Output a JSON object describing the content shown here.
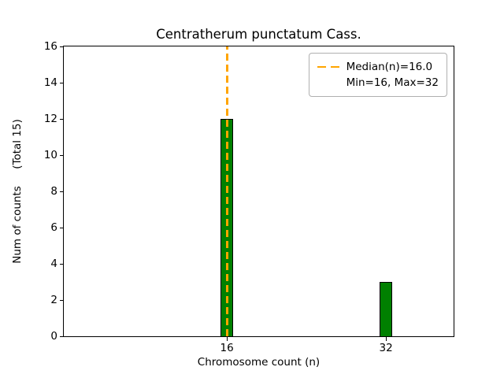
{
  "chart_data": {
    "type": "bar",
    "title": "Centratherum punctatum Cass.",
    "xlabel": "Chromosome count (n)",
    "ylabel": "Num of counts     (Total 15)",
    "xlim": [
      -0.4,
      38.8
    ],
    "ylim": [
      0,
      16
    ],
    "x_ticks": [
      16,
      32
    ],
    "y_ticks": [
      0,
      2,
      4,
      6,
      8,
      10,
      12,
      14,
      16
    ],
    "bars": [
      {
        "x": 16,
        "count": 12
      },
      {
        "x": 32,
        "count": 3
      }
    ],
    "bar_color": "#008000",
    "bar_edge_color": "#000000",
    "median_line": {
      "x": 16,
      "value_label": "16.0",
      "color": "#FFA500",
      "style": "dashed"
    },
    "legend": {
      "line1": "Median(n)=16.0",
      "line2": "Min=16, Max=32"
    },
    "grid": false,
    "legend_position": "upper right"
  }
}
